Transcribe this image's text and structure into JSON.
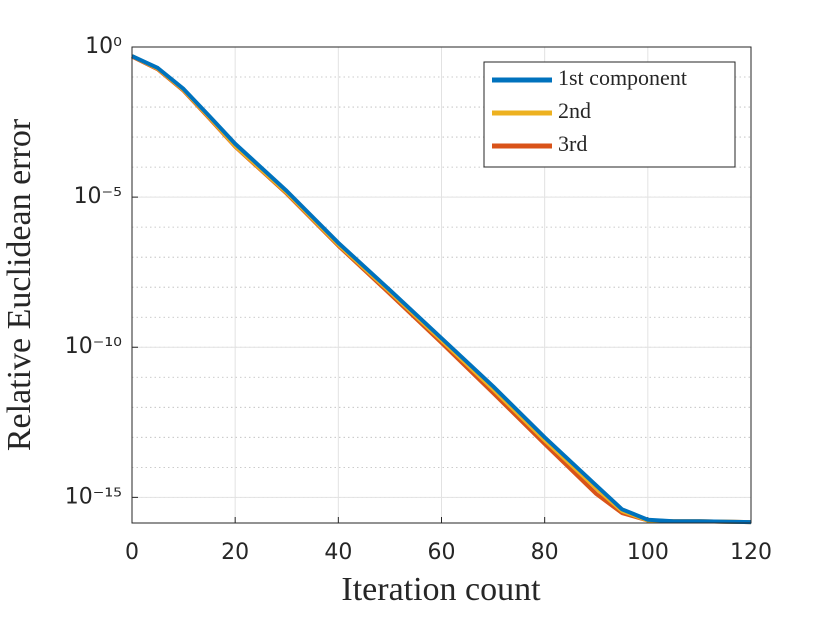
{
  "chart_data": {
    "type": "line",
    "x_label": "Iteration count",
    "y_label": "Relative Euclidean error",
    "x": [
      0,
      5,
      10,
      15,
      20,
      30,
      40,
      50,
      60,
      70,
      80,
      90,
      95,
      100,
      105,
      110,
      120
    ],
    "series": [
      {
        "name": "1st component",
        "color": "#0072BD",
        "values": [
          0.5,
          0.2,
          0.04,
          0.005,
          0.0006,
          1.6e-05,
          3e-07,
          8e-09,
          2e-10,
          5e-12,
          1e-13,
          2.5e-15,
          4e-16,
          1.8e-16,
          1.6e-16,
          1.6e-16,
          1.5e-16
        ]
      },
      {
        "name": "2nd",
        "color": "#EDB120",
        "values": [
          0.5,
          0.19,
          0.037,
          0.0045,
          0.0005,
          1.4e-05,
          2.6e-07,
          7e-09,
          1.7e-10,
          4e-12,
          8e-14,
          2e-15,
          3.5e-16,
          1.7e-16,
          1.6e-16,
          1.6e-16,
          1.5e-16
        ]
      },
      {
        "name": "3rd",
        "color": "#D95319",
        "values": [
          0.48,
          0.18,
          0.035,
          0.0042,
          0.00048,
          1.3e-05,
          2.4e-07,
          6e-09,
          1.4e-10,
          3e-12,
          6e-14,
          1.3e-15,
          3e-16,
          1.7e-16,
          1.6e-16,
          1.6e-16,
          1.5e-16
        ]
      }
    ],
    "xlim": [
      0,
      120
    ],
    "xticks": [
      0,
      20,
      40,
      60,
      80,
      100,
      120
    ],
    "ylim": [
      1.4e-16,
      1
    ],
    "yticks": [
      {
        "value": 1,
        "label": "10⁰"
      },
      {
        "value": 1e-05,
        "label": "10⁻⁵"
      },
      {
        "value": 1e-10,
        "label": "10⁻¹⁰"
      },
      {
        "value": 1e-15,
        "label": "10⁻¹⁵"
      }
    ],
    "log_y": true,
    "grid": true,
    "minor_grid": true,
    "legend": "northeast"
  }
}
